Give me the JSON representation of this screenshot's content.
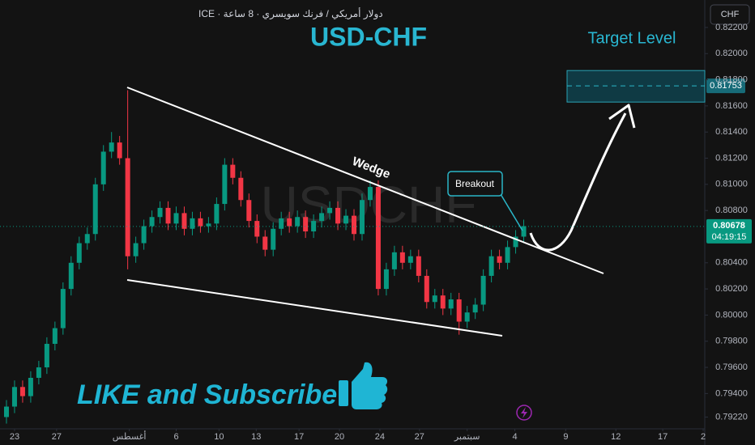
{
  "chart_data": {
    "type": "candlestick",
    "title": "USD-CHF",
    "symbol_info": "دولار أمريكي / فرنك سويسري · 8 ساعة · ICE",
    "watermark": "USDCHF",
    "currency": "CHF",
    "annotations": {
      "target": "Target Level",
      "wedge": "Wedge",
      "breakout": "Breakout",
      "cta": "LIKE and Subscribe"
    },
    "up_color": "#089981",
    "down_color": "#f23645",
    "grid": false,
    "open": [
      0.7922,
      0.793,
      0.7945,
      0.7938,
      0.7952,
      0.796,
      0.7978,
      0.799,
      0.802,
      0.804,
      0.8055,
      0.8062,
      0.81,
      0.8125,
      0.8132,
      0.812,
      0.8045,
      0.8055,
      0.8068,
      0.8075,
      0.8082,
      0.807,
      0.8078,
      0.8066,
      0.8074,
      0.8068,
      0.807,
      0.8085,
      0.8115,
      0.8105,
      0.8088,
      0.8072,
      0.806,
      0.805,
      0.8066,
      0.8074,
      0.8068,
      0.8075,
      0.8064,
      0.8072,
      0.8078,
      0.8082,
      0.807,
      0.8076,
      0.8062,
      0.8088,
      0.8098,
      0.802,
      0.8035,
      0.8048,
      0.804,
      0.8045,
      0.803,
      0.801,
      0.8015,
      0.8005,
      0.8012,
      0.7995,
      0.8002,
      0.8008,
      0.803,
      0.8045,
      0.804,
      0.8052,
      0.806
    ],
    "high": [
      0.7935,
      0.795,
      0.795,
      0.7957,
      0.7965,
      0.7983,
      0.7995,
      0.8025,
      0.8045,
      0.806,
      0.8067,
      0.8105,
      0.813,
      0.814,
      0.8137,
      0.8172,
      0.806,
      0.8073,
      0.808,
      0.8087,
      0.8087,
      0.8083,
      0.8083,
      0.8079,
      0.8079,
      0.8075,
      0.809,
      0.812,
      0.812,
      0.811,
      0.8093,
      0.8077,
      0.8065,
      0.8071,
      0.8079,
      0.8079,
      0.808,
      0.808,
      0.8077,
      0.8083,
      0.8087,
      0.8087,
      0.8081,
      0.8081,
      0.8093,
      0.8103,
      0.8103,
      0.804,
      0.8053,
      0.8053,
      0.805,
      0.805,
      0.8035,
      0.802,
      0.802,
      0.8017,
      0.8017,
      0.8007,
      0.8013,
      0.8035,
      0.805,
      0.805,
      0.8057,
      0.8065,
      0.8073
    ],
    "low": [
      0.7917,
      0.7925,
      0.7933,
      0.7933,
      0.7947,
      0.7955,
      0.7973,
      0.7985,
      0.8015,
      0.8035,
      0.805,
      0.8057,
      0.8095,
      0.812,
      0.8115,
      0.8035,
      0.804,
      0.805,
      0.8063,
      0.807,
      0.8065,
      0.8065,
      0.8061,
      0.8061,
      0.8063,
      0.8063,
      0.8065,
      0.808,
      0.81,
      0.8083,
      0.8067,
      0.8055,
      0.8045,
      0.8045,
      0.8061,
      0.8063,
      0.8063,
      0.8059,
      0.8059,
      0.8067,
      0.8073,
      0.8065,
      0.8065,
      0.8057,
      0.8057,
      0.8083,
      0.8015,
      0.8015,
      0.803,
      0.8035,
      0.8035,
      0.8025,
      0.8005,
      0.8005,
      0.8,
      0.8,
      0.7985,
      0.799,
      0.7997,
      0.8003,
      0.8025,
      0.8035,
      0.8035,
      0.8047,
      0.8055
    ],
    "close": [
      0.793,
      0.7945,
      0.7938,
      0.7952,
      0.796,
      0.7978,
      0.799,
      0.802,
      0.804,
      0.8055,
      0.8062,
      0.81,
      0.8125,
      0.8132,
      0.812,
      0.8045,
      0.8055,
      0.8068,
      0.8075,
      0.8082,
      0.807,
      0.8078,
      0.8066,
      0.8074,
      0.8068,
      0.807,
      0.8085,
      0.8115,
      0.8105,
      0.8088,
      0.8072,
      0.806,
      0.805,
      0.8066,
      0.8074,
      0.8068,
      0.8075,
      0.8064,
      0.8072,
      0.8078,
      0.8082,
      0.807,
      0.8076,
      0.8062,
      0.8088,
      0.8098,
      0.802,
      0.8035,
      0.8048,
      0.804,
      0.8045,
      0.803,
      0.801,
      0.8015,
      0.8005,
      0.8012,
      0.7995,
      0.8002,
      0.8008,
      0.803,
      0.8045,
      0.804,
      0.8052,
      0.806,
      0.8068
    ],
    "xlim": [
      -0.8,
      86.4
    ],
    "xticks": [
      {
        "value": 1,
        "label": "23"
      },
      {
        "value": 6.2,
        "label": "27"
      },
      {
        "value": 15.2,
        "label": "أغسطس"
      },
      {
        "value": 21,
        "label": "6"
      },
      {
        "value": 26.3,
        "label": "10"
      },
      {
        "value": 30.9,
        "label": "13"
      },
      {
        "value": 36.2,
        "label": "17"
      },
      {
        "value": 41.2,
        "label": "20"
      },
      {
        "value": 46.2,
        "label": "24"
      },
      {
        "value": 51.1,
        "label": "27"
      },
      {
        "value": 57,
        "label": "سبتمبر"
      },
      {
        "value": 62.9,
        "label": "4"
      },
      {
        "value": 69.2,
        "label": "9"
      },
      {
        "value": 75.4,
        "label": "12"
      },
      {
        "value": 81.2,
        "label": "17"
      },
      {
        "value": 86.2,
        "label": "2"
      }
    ],
    "ylim": [
      0.7913,
      0.8241
    ],
    "yticks": [
      {
        "value": 0.822,
        "label": "0.82200"
      },
      {
        "value": 0.82,
        "label": "0.82000"
      },
      {
        "value": 0.818,
        "label": "0.81800"
      },
      {
        "value": 0.816,
        "label": "0.81600"
      },
      {
        "value": 0.814,
        "label": "0.81400"
      },
      {
        "value": 0.812,
        "label": "0.81200"
      },
      {
        "value": 0.81,
        "label": "0.81000"
      },
      {
        "value": 0.808,
        "label": "0.80800"
      },
      {
        "value": 0.804,
        "label": "0.80400"
      },
      {
        "value": 0.802,
        "label": "0.80200"
      },
      {
        "value": 0.8,
        "label": "0.80000"
      },
      {
        "value": 0.798,
        "label": "0.79800"
      },
      {
        "value": 0.796,
        "label": "0.79600"
      },
      {
        "value": 0.794,
        "label": "0.79400"
      },
      {
        "value": 0.7922,
        "label": "0.79220"
      }
    ],
    "last_price": 0.80678,
    "countdown": "04:19:15",
    "target_price": 0.81753
  }
}
